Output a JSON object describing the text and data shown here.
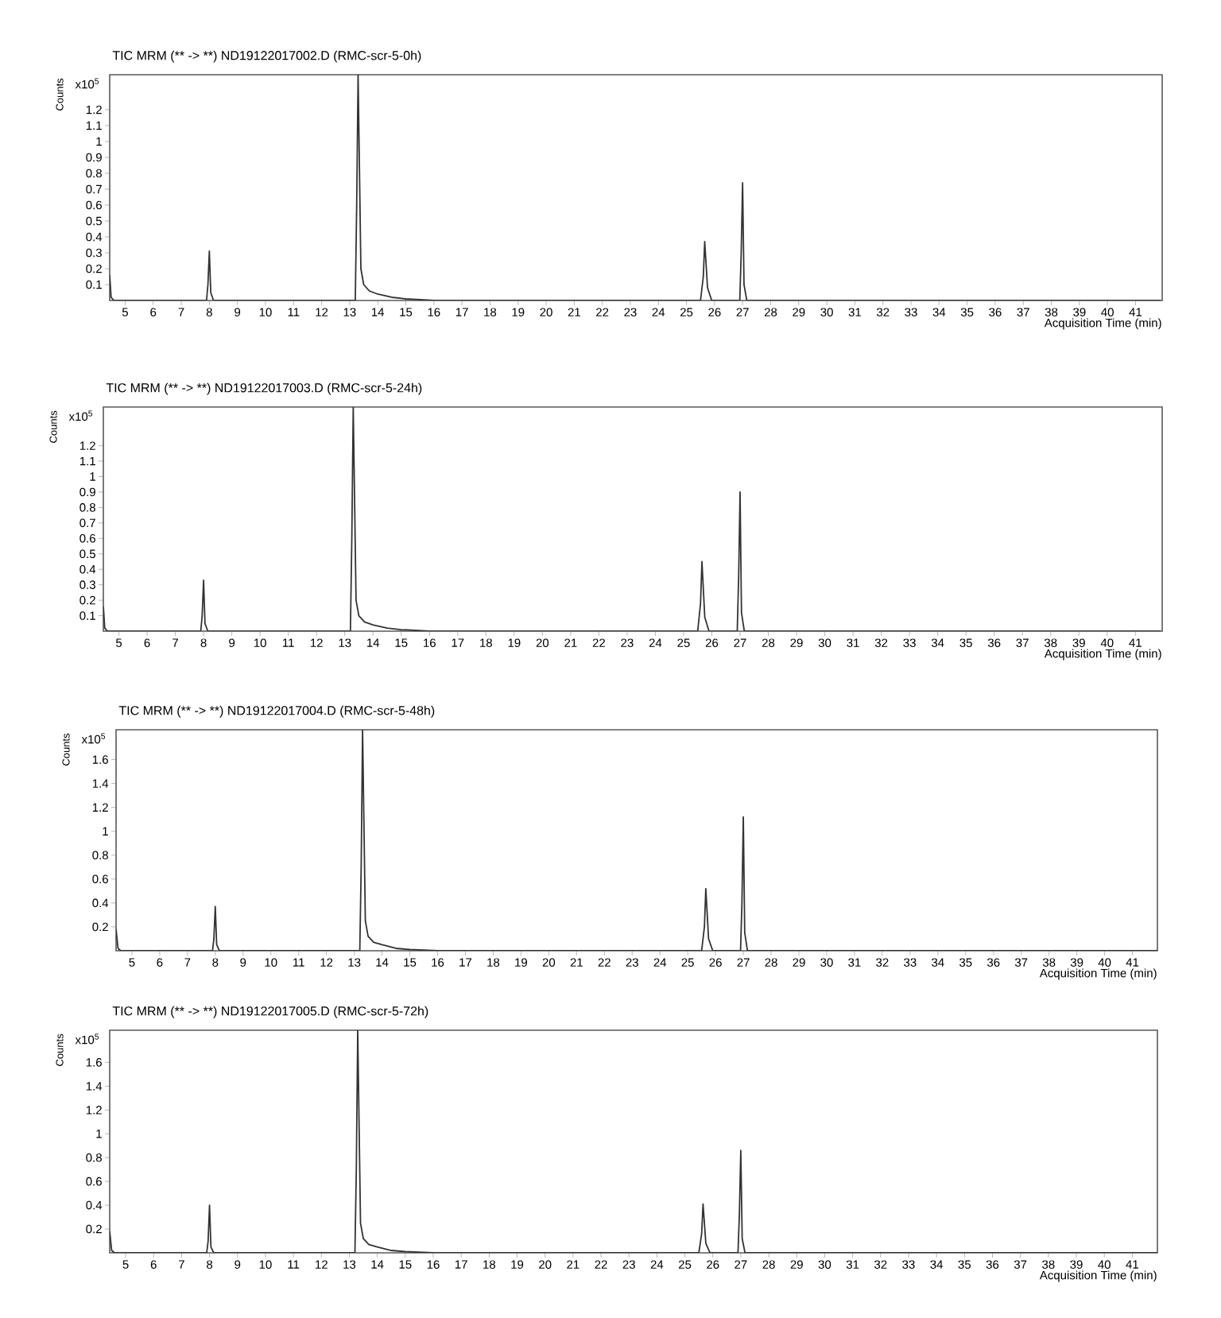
{
  "chart_data": [
    {
      "type": "line",
      "title": "TIC MRM (** -> **) ND19122017002.D (RMC-scr-5-0h)",
      "xlabel": "Acquisition Time (min)",
      "ylabel": "Counts",
      "annotations": [
        "x10$^{5}$"
      ],
      "color": "#333333",
      "xlim": [
        4.45,
        41.95
      ],
      "ylim": [
        0,
        1.42
      ],
      "xticks": [
        5,
        6,
        7,
        8,
        9,
        10,
        11,
        12,
        13,
        14,
        15,
        16,
        17,
        18,
        19,
        20,
        21,
        22,
        23,
        24,
        25,
        26,
        27,
        28,
        29,
        30,
        31,
        32,
        33,
        34,
        35,
        36,
        37,
        38,
        39,
        40,
        41
      ],
      "yticks": [
        0.1,
        0.2,
        0.3,
        0.4,
        0.5,
        0.6,
        0.7,
        0.8,
        0.9,
        1,
        1.1,
        1.2
      ],
      "x": [
        4.45,
        4.5,
        4.6,
        7.9,
        7.95,
        8.0,
        8.05,
        8.15,
        13.2,
        13.25,
        13.3,
        13.4,
        13.5,
        13.7,
        14.0,
        14.5,
        15.0,
        16.0,
        25.5,
        25.6,
        25.65,
        25.75,
        25.9,
        26.9,
        26.95,
        27.0,
        27.05,
        27.15,
        41.9
      ],
      "values": [
        0.16,
        0.02,
        0,
        0,
        0.1,
        0.31,
        0.05,
        0,
        0,
        0.6,
        1.42,
        0.2,
        0.1,
        0.06,
        0.04,
        0.02,
        0.01,
        0,
        0,
        0.15,
        0.37,
        0.08,
        0,
        0,
        0.3,
        0.74,
        0.1,
        0,
        0
      ]
    },
    {
      "type": "line",
      "title": "TIC MRM (** -> **) ND19122017003.D (RMC-scr-5-24h)",
      "xlabel": "Acquisition Time (min)",
      "ylabel": "Counts",
      "annotations": [
        "x10$^{5}$"
      ],
      "color": "#333333",
      "xlim": [
        4.45,
        41.95
      ],
      "ylim": [
        0,
        1.45
      ],
      "xticks": [
        5,
        6,
        7,
        8,
        9,
        10,
        11,
        12,
        13,
        14,
        15,
        16,
        17,
        18,
        19,
        20,
        21,
        22,
        23,
        24,
        25,
        26,
        27,
        28,
        29,
        30,
        31,
        32,
        33,
        34,
        35,
        36,
        37,
        38,
        39,
        40,
        41
      ],
      "yticks": [
        0.1,
        0.2,
        0.3,
        0.4,
        0.5,
        0.6,
        0.7,
        0.8,
        0.9,
        1,
        1.1,
        1.2
      ],
      "x": [
        4.45,
        4.5,
        4.6,
        7.9,
        7.95,
        8.0,
        8.05,
        8.15,
        13.2,
        13.25,
        13.3,
        13.4,
        13.5,
        13.7,
        14.0,
        14.5,
        15.0,
        16.0,
        25.5,
        25.6,
        25.65,
        25.75,
        25.9,
        26.9,
        26.95,
        27.0,
        27.05,
        27.15,
        41.9
      ],
      "values": [
        0.16,
        0.02,
        0,
        0,
        0.1,
        0.33,
        0.05,
        0,
        0,
        0.6,
        1.45,
        0.2,
        0.1,
        0.06,
        0.04,
        0.02,
        0.01,
        0,
        0,
        0.18,
        0.45,
        0.09,
        0,
        0,
        0.35,
        0.9,
        0.12,
        0,
        0
      ]
    },
    {
      "type": "line",
      "title": "TIC MRM (** -> **) ND19122017004.D (RMC-scr-5-48h)",
      "xlabel": "Acquisition Time (min)",
      "ylabel": "Counts",
      "annotations": [
        "x10$^{5}$"
      ],
      "color": "#333333",
      "xlim": [
        4.43,
        41.9
      ],
      "ylim": [
        0,
        1.85
      ],
      "xticks": [
        5,
        6,
        7,
        8,
        9,
        10,
        11,
        12,
        13,
        14,
        15,
        16,
        17,
        18,
        19,
        20,
        21,
        22,
        23,
        24,
        25,
        26,
        27,
        28,
        29,
        30,
        31,
        32,
        33,
        34,
        35,
        36,
        37,
        38,
        39,
        40,
        41
      ],
      "yticks": [
        0.2,
        0.4,
        0.6,
        0.8,
        1,
        1.2,
        1.4,
        1.6
      ],
      "x": [
        4.43,
        4.5,
        4.6,
        7.9,
        7.95,
        8.0,
        8.05,
        8.15,
        13.2,
        13.25,
        13.3,
        13.4,
        13.5,
        13.7,
        14.0,
        14.5,
        15.0,
        16.0,
        25.5,
        25.6,
        25.65,
        25.75,
        25.9,
        26.9,
        26.95,
        27.0,
        27.05,
        27.15,
        41.9
      ],
      "values": [
        0.18,
        0.02,
        0,
        0,
        0.1,
        0.37,
        0.05,
        0,
        0,
        0.7,
        1.85,
        0.25,
        0.12,
        0.07,
        0.05,
        0.02,
        0.01,
        0,
        0,
        0.2,
        0.52,
        0.1,
        0,
        0,
        0.4,
        1.12,
        0.15,
        0,
        0
      ]
    },
    {
      "type": "line",
      "title": "TIC MRM (** -> **) ND19122017005.D (RMC-scr-5-72h)",
      "xlabel": "Acquisition Time (min)",
      "ylabel": "Counts",
      "annotations": [
        "x10$^{5}$"
      ],
      "color": "#333333",
      "xlim": [
        4.43,
        41.9
      ],
      "ylim": [
        0,
        1.87
      ],
      "xticks": [
        5,
        6,
        7,
        8,
        9,
        10,
        11,
        12,
        13,
        14,
        15,
        16,
        17,
        18,
        19,
        20,
        21,
        22,
        23,
        24,
        25,
        26,
        27,
        28,
        29,
        30,
        31,
        32,
        33,
        34,
        35,
        36,
        37,
        38,
        39,
        40,
        41
      ],
      "yticks": [
        0.2,
        0.4,
        0.6,
        0.8,
        1,
        1.2,
        1.4,
        1.6
      ],
      "x": [
        4.43,
        4.5,
        4.6,
        7.9,
        7.95,
        8.0,
        8.05,
        8.15,
        13.2,
        13.25,
        13.3,
        13.4,
        13.5,
        13.7,
        14.0,
        14.5,
        15.0,
        16.0,
        25.5,
        25.6,
        25.65,
        25.75,
        25.9,
        26.9,
        26.95,
        27.0,
        27.05,
        27.15,
        41.9
      ],
      "values": [
        0.18,
        0.02,
        0,
        0,
        0.1,
        0.4,
        0.05,
        0,
        0,
        0.7,
        1.87,
        0.25,
        0.12,
        0.07,
        0.05,
        0.02,
        0.01,
        0,
        0,
        0.16,
        0.41,
        0.08,
        0,
        0,
        0.33,
        0.86,
        0.12,
        0,
        0
      ]
    }
  ]
}
